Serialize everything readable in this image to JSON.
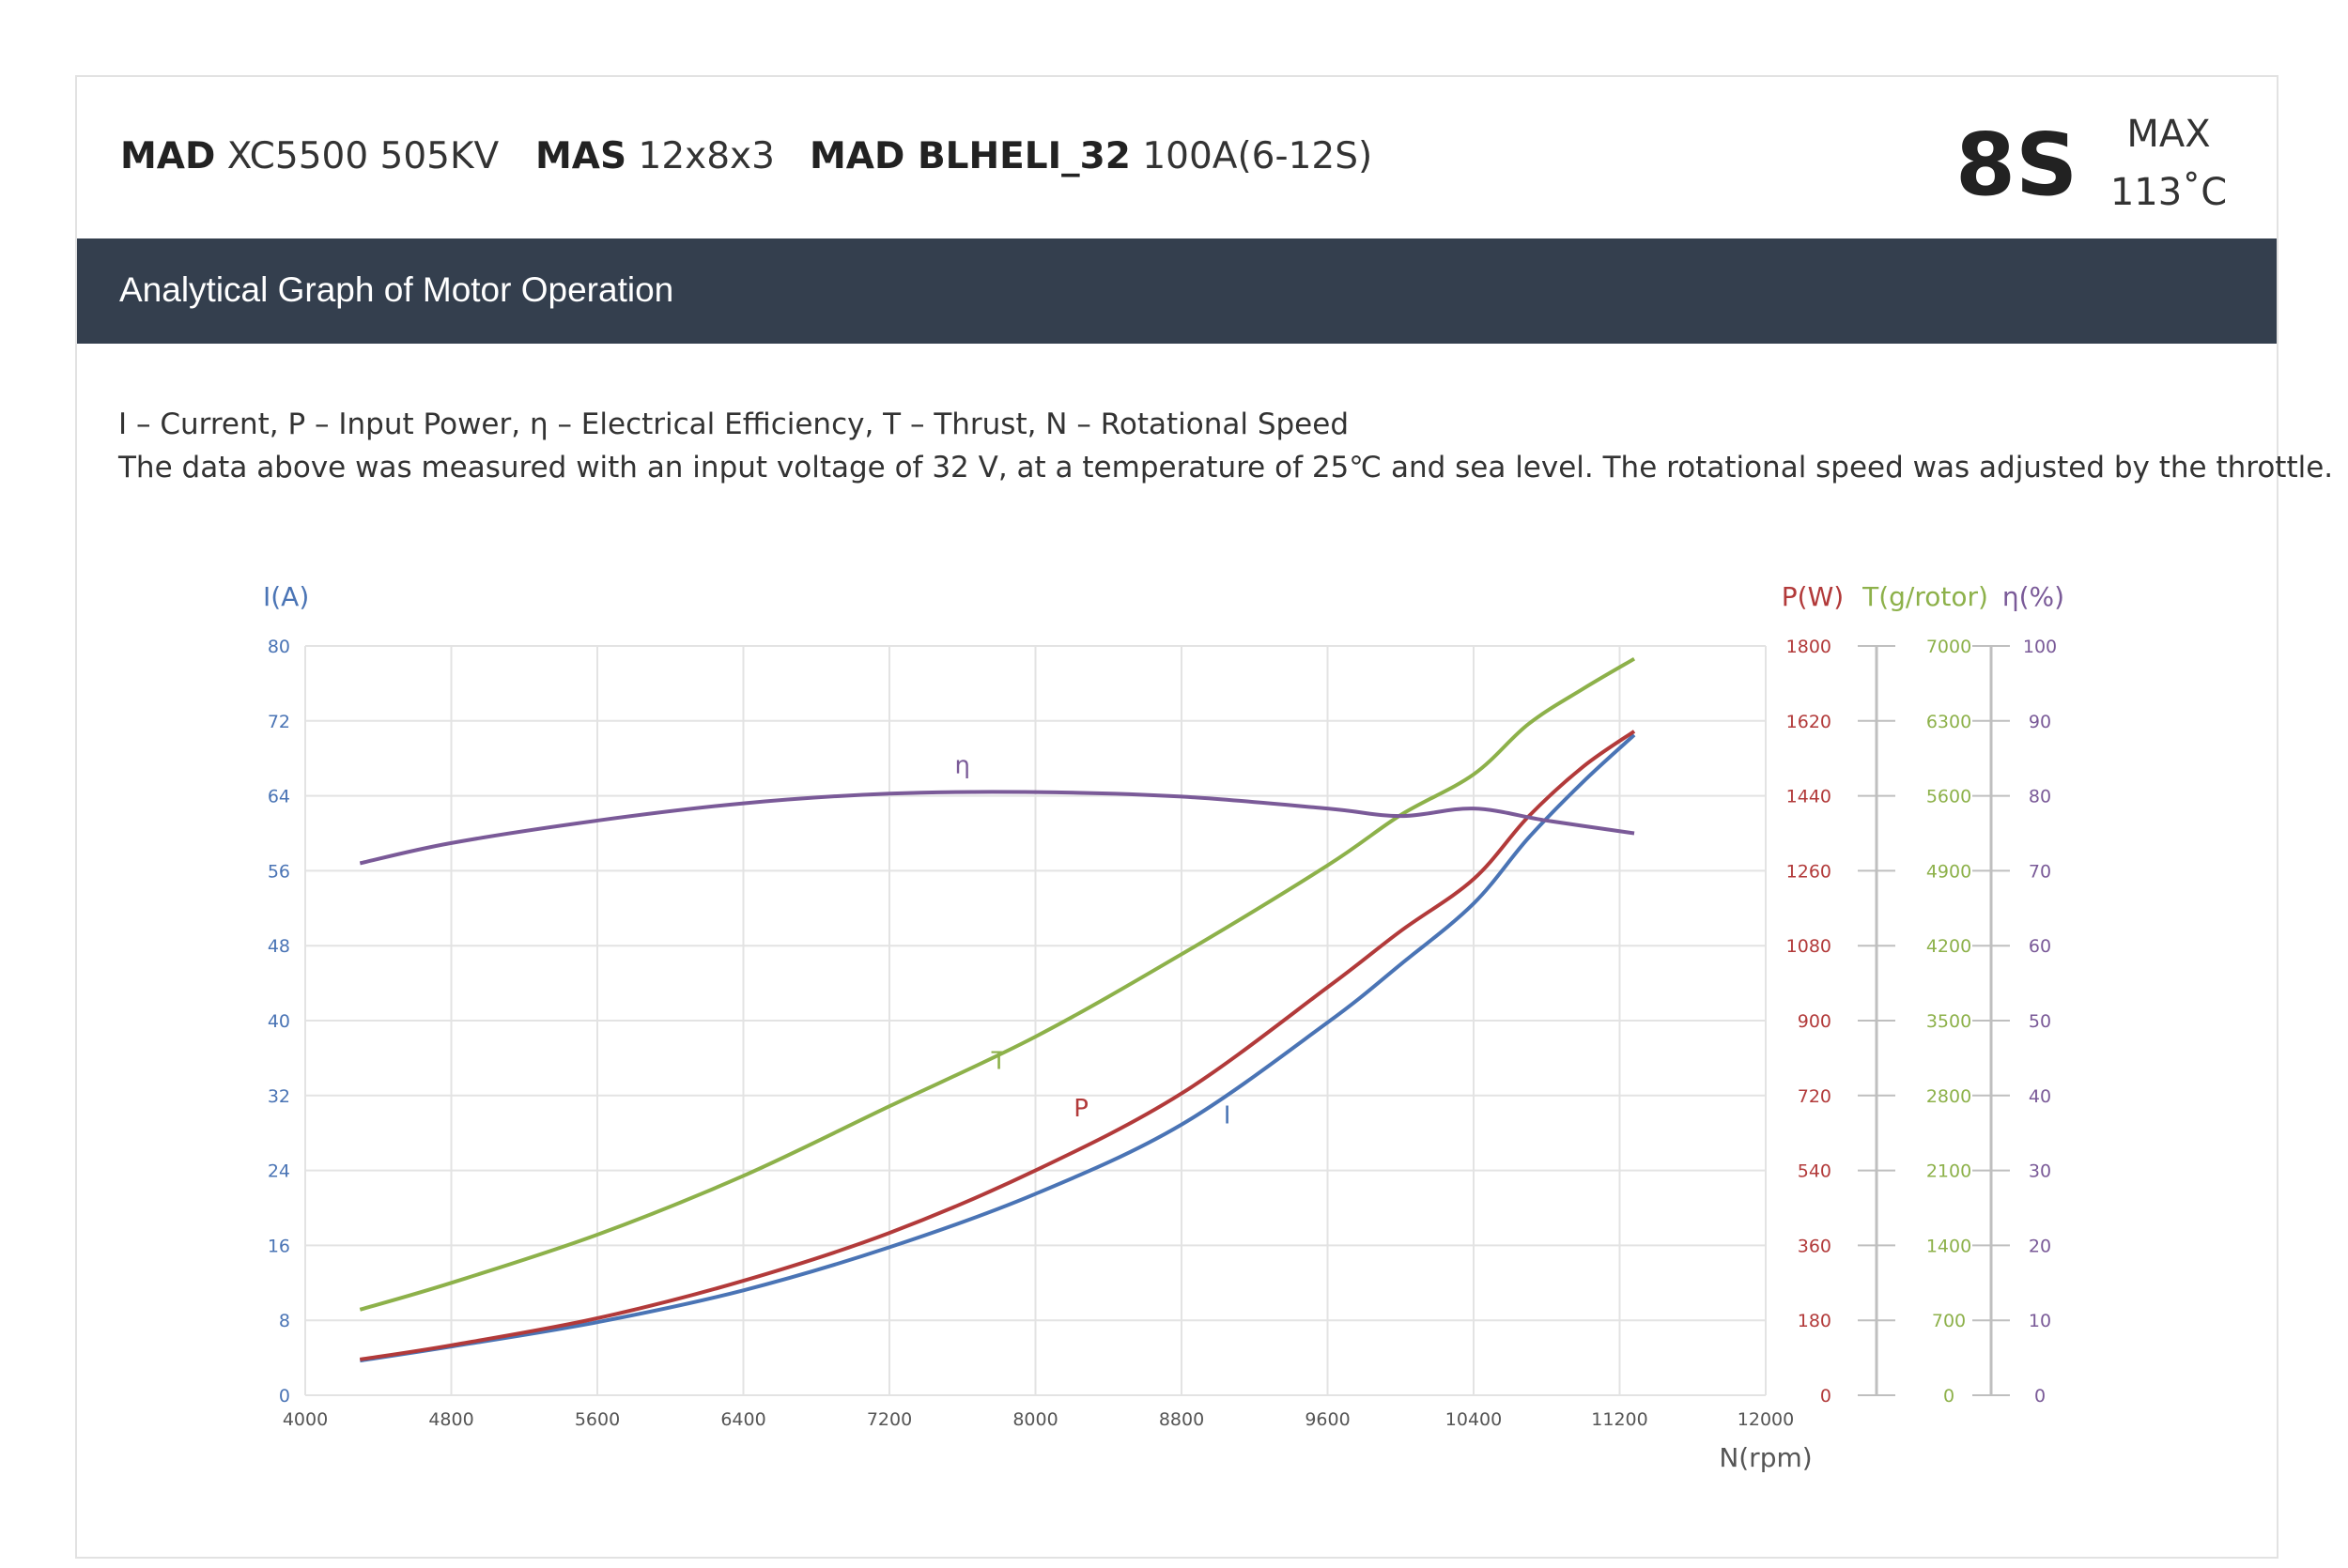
{
  "header": {
    "specs": [
      {
        "brand": "MAD",
        "model": "XC5500 505KV"
      },
      {
        "brand": "MAS",
        "model": "12x8x3"
      },
      {
        "brand": "MAD BLHELI_32",
        "model": "100A(6-12S)"
      }
    ],
    "cells": "8S",
    "max_label": "MAX",
    "max_temp": "113˚C"
  },
  "banner": {
    "title": "Analytical Graph of Motor Operation"
  },
  "description": {
    "legend_line": "I – Current, P – Input Power, η – Electrical Efficiency, T – Thrust,   N – Rotational Speed",
    "conditions_line": "The data above was measured with an input voltage of 32 V, at a temperature of 25℃ and sea level. The rotational speed was adjusted by the throttle."
  },
  "colors": {
    "current": "#4a74b5",
    "power": "#b23a3a",
    "thrust": "#8db14a",
    "efficiency": "#7a5a98",
    "grid": "#e3e3e3",
    "banner": "#343f4e"
  },
  "chart_data": {
    "type": "line",
    "xlabel": "N(rpm)",
    "xlim": [
      4000,
      12000
    ],
    "x_ticks": [
      4000,
      4800,
      5600,
      6400,
      7200,
      8000,
      8800,
      9600,
      10400,
      11200,
      12000
    ],
    "axes": {
      "current": {
        "label": "I(A)",
        "range": [
          0,
          80
        ],
        "ticks": [
          0,
          8,
          16,
          24,
          32,
          40,
          48,
          56,
          64,
          72,
          80
        ]
      },
      "power": {
        "label": "P(W)",
        "range": [
          0,
          1800
        ],
        "ticks": [
          0,
          180,
          360,
          540,
          720,
          900,
          1080,
          1260,
          1440,
          1620,
          1800
        ]
      },
      "thrust": {
        "label": "T(g/rotor)",
        "range": [
          0,
          7000
        ],
        "ticks": [
          0,
          700,
          1400,
          2100,
          2800,
          3500,
          4200,
          4900,
          5600,
          6300,
          7000
        ]
      },
      "efficiency": {
        "label": "η(%)",
        "range": [
          0,
          100
        ],
        "ticks": [
          0,
          10,
          20,
          30,
          40,
          50,
          60,
          70,
          80,
          90,
          100
        ]
      }
    },
    "series": [
      {
        "name": "I",
        "axis": "current",
        "label_at": [
          9050,
          29
        ],
        "x": [
          4300,
          4800,
          5600,
          6400,
          7200,
          8000,
          8800,
          9600,
          10000,
          10400,
          10700,
          11000,
          11280
        ],
        "y": [
          3.7,
          5.2,
          7.8,
          11.2,
          15.8,
          21.5,
          28.9,
          39.8,
          46,
          52.5,
          59.5,
          65.5,
          70.5
        ]
      },
      {
        "name": "P",
        "axis": "power",
        "label_at": [
          8250,
          670
        ],
        "x": [
          4300,
          4800,
          5600,
          6400,
          7200,
          8000,
          8800,
          9600,
          10000,
          10400,
          10700,
          11000,
          11280
        ],
        "y": [
          86,
          120,
          185,
          275,
          390,
          540,
          725,
          980,
          1115,
          1240,
          1390,
          1510,
          1595
        ]
      },
      {
        "name": "T",
        "axis": "thrust",
        "label_at": [
          7800,
          3050
        ],
        "x": [
          4300,
          4800,
          5600,
          6400,
          7200,
          8000,
          8800,
          9600,
          10000,
          10400,
          10700,
          11000,
          11280
        ],
        "y": [
          800,
          1050,
          1500,
          2050,
          2700,
          3350,
          4120,
          4950,
          5420,
          5800,
          6270,
          6600,
          6880
        ]
      },
      {
        "name": "η",
        "axis": "efficiency",
        "label_at": [
          7600,
          83
        ],
        "x": [
          4300,
          4800,
          5600,
          6400,
          7200,
          8000,
          8800,
          9600,
          10000,
          10400,
          10800,
          11280
        ],
        "y": [
          71,
          73.7,
          76.7,
          79,
          80.3,
          80.5,
          79.9,
          78.3,
          77.3,
          78.3,
          76.7,
          75
        ]
      }
    ]
  }
}
